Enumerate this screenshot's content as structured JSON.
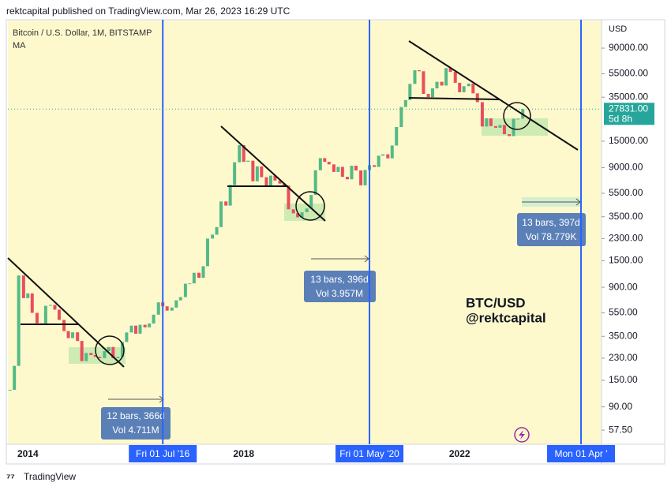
{
  "page": {
    "header": "rektcapital published on TradingView.com, Mar 26, 2023 16:29 UTC",
    "brand": "TradingView"
  },
  "chart_data": {
    "type": "candlestick",
    "title": "Bitcoin / U.S. Dollar, 1M, BITSTAMP",
    "subtitle": "MA",
    "y_axis_label": "USD",
    "log_scale": true,
    "grid": false,
    "xlim": [
      2013.63,
      2024.63
    ],
    "xticks": [
      2014,
      2018,
      2022
    ],
    "ylim": [
      43.8,
      155600
    ],
    "yticks": [
      {
        "value": 90000,
        "label": "90000.00"
      },
      {
        "value": 55000,
        "label": "55000.00"
      },
      {
        "value": 35000,
        "label": "35000.00"
      },
      {
        "value": 15000,
        "label": "15000.00"
      },
      {
        "value": 9000,
        "label": "9000.00"
      },
      {
        "value": 5500,
        "label": "5500.00"
      },
      {
        "value": 3500,
        "label": "3500.00"
      },
      {
        "value": 2300,
        "label": "2300.00"
      },
      {
        "value": 1500,
        "label": "1500.00"
      },
      {
        "value": 900,
        "label": "900.00"
      },
      {
        "value": 550,
        "label": "550.00"
      },
      {
        "value": 350,
        "label": "350.00"
      },
      {
        "value": 230,
        "label": "230.00"
      },
      {
        "value": 150,
        "label": "150.00"
      },
      {
        "value": 90,
        "label": "90.00"
      },
      {
        "value": 57.5,
        "label": "57.50"
      }
    ],
    "last_price": {
      "value": 27831,
      "label": "27831.00",
      "countdown": "5d 8h",
      "color": "#26a69a"
    },
    "series": [
      {
        "name": "Bitcoin / U.S. Dollar",
        "up_color": "#53b987",
        "down_color": "#eb4d5c",
        "x": [
          2013.67,
          2013.75,
          2013.83,
          2013.92,
          2014,
          2014.08,
          2014.17,
          2014.25,
          2014.33,
          2014.42,
          2014.5,
          2014.58,
          2014.67,
          2014.75,
          2014.83,
          2014.92,
          2015,
          2015.08,
          2015.17,
          2015.25,
          2015.33,
          2015.42,
          2015.5,
          2015.58,
          2015.67,
          2015.75,
          2015.83,
          2015.92,
          2016,
          2016.08,
          2016.17,
          2016.25,
          2016.33,
          2016.42,
          2016.5,
          2016.58,
          2016.67,
          2016.75,
          2016.83,
          2016.92,
          2017,
          2017.08,
          2017.17,
          2017.25,
          2017.33,
          2017.42,
          2017.5,
          2017.58,
          2017.67,
          2017.75,
          2017.83,
          2017.92,
          2018,
          2018.08,
          2018.17,
          2018.25,
          2018.33,
          2018.42,
          2018.5,
          2018.58,
          2018.67,
          2018.75,
          2018.83,
          2018.92,
          2019,
          2019.08,
          2019.17,
          2019.25,
          2019.33,
          2019.42,
          2019.5,
          2019.58,
          2019.67,
          2019.75,
          2019.83,
          2019.92,
          2020,
          2020.08,
          2020.17,
          2020.25,
          2020.33,
          2020.42,
          2020.5,
          2020.58,
          2020.67,
          2020.75,
          2020.83,
          2020.92,
          2021,
          2021.08,
          2021.17,
          2021.25,
          2021.33,
          2021.42,
          2021.5,
          2021.58,
          2021.67,
          2021.75,
          2021.83,
          2021.92,
          2022,
          2022.08,
          2022.17,
          2022.25,
          2022.33,
          2022.42,
          2022.5,
          2022.58,
          2022.67,
          2022.75,
          2022.83,
          2022.92,
          2023,
          2023.08,
          2023.17
        ],
        "values": [
          125,
          198,
          1130,
          730,
          800,
          550,
          450,
          445,
          630,
          640,
          585,
          480,
          387,
          338,
          378,
          320,
          217,
          254,
          244,
          236,
          230,
          263,
          285,
          230,
          236,
          314,
          377,
          430,
          368,
          437,
          416,
          448,
          531,
          673,
          624,
          574,
          609,
          700,
          745,
          964,
          970,
          1190,
          1080,
          1350,
          2300,
          2480,
          2870,
          4700,
          4340,
          6450,
          10000,
          13900,
          10100,
          10300,
          6930,
          9240,
          7500,
          6400,
          7730,
          7030,
          6630,
          6370,
          4040,
          3740,
          3460,
          3820,
          4100,
          5320,
          8570,
          10820,
          10080,
          9600,
          8300,
          9150,
          7550,
          7200,
          9350,
          8540,
          6410,
          8620,
          9450,
          9140,
          11350,
          11650,
          10780,
          13800,
          19700,
          28990,
          33100,
          45200,
          58800,
          57700,
          37300,
          35000,
          41500,
          47100,
          43800,
          61300,
          57000,
          46200,
          38500,
          43200,
          45500,
          37700,
          31800,
          19900,
          23300,
          20050,
          19430,
          20490,
          17170,
          16540,
          23130,
          23150,
          27831
        ]
      }
    ],
    "vlines": [
      {
        "x": 2016.5,
        "label": "Fri 01 Jul '16",
        "color": "#2962ff"
      },
      {
        "x": 2020.33,
        "label": "Fri 01 May '20",
        "color": "#2962ff"
      },
      {
        "x": 2024.25,
        "label": "Mon 01 Apr '",
        "color": "#2962ff"
      }
    ],
    "measures": [
      {
        "label": "12 bars, 366d",
        "volume": "Vol 4.711M"
      },
      {
        "label": "13 bars, 396d",
        "volume": "Vol 3.957M"
      },
      {
        "label": "13 bars, 397d",
        "volume": "Vol 78.779K"
      }
    ],
    "annotations": [
      "BTC/USD",
      "@rektcapital"
    ]
  }
}
